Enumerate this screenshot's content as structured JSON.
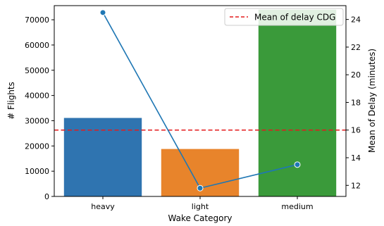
{
  "chart_data": {
    "type": "bar",
    "categories": [
      "heavy",
      "light",
      "medium"
    ],
    "series": [
      {
        "axis": "left",
        "type": "bar",
        "values": [
          31100,
          18800,
          74000
        ],
        "colors": [
          "#2f74b0",
          "#e8842b",
          "#3a9a3a"
        ]
      },
      {
        "axis": "right",
        "type": "line",
        "values": [
          24.5,
          11.8,
          13.5
        ],
        "color": "#1f77b4"
      }
    ],
    "reference_line": {
      "axis": "right",
      "value": 16.0,
      "label": "Mean of delay CDG",
      "color": "#e41a1c",
      "style": "dashed"
    },
    "xlabel": "Wake Category",
    "ylabel": "# Flights",
    "y2label": "Mean of Delay (minutes)",
    "ylim": [
      0,
      75600
    ],
    "y2lim": [
      11.2,
      25.0
    ],
    "yticks": [
      0,
      10000,
      20000,
      30000,
      40000,
      50000,
      60000,
      70000
    ],
    "y2ticks": [
      12,
      14,
      16,
      18,
      20,
      22,
      24
    ],
    "legend_position": "top-right",
    "grid": false
  }
}
